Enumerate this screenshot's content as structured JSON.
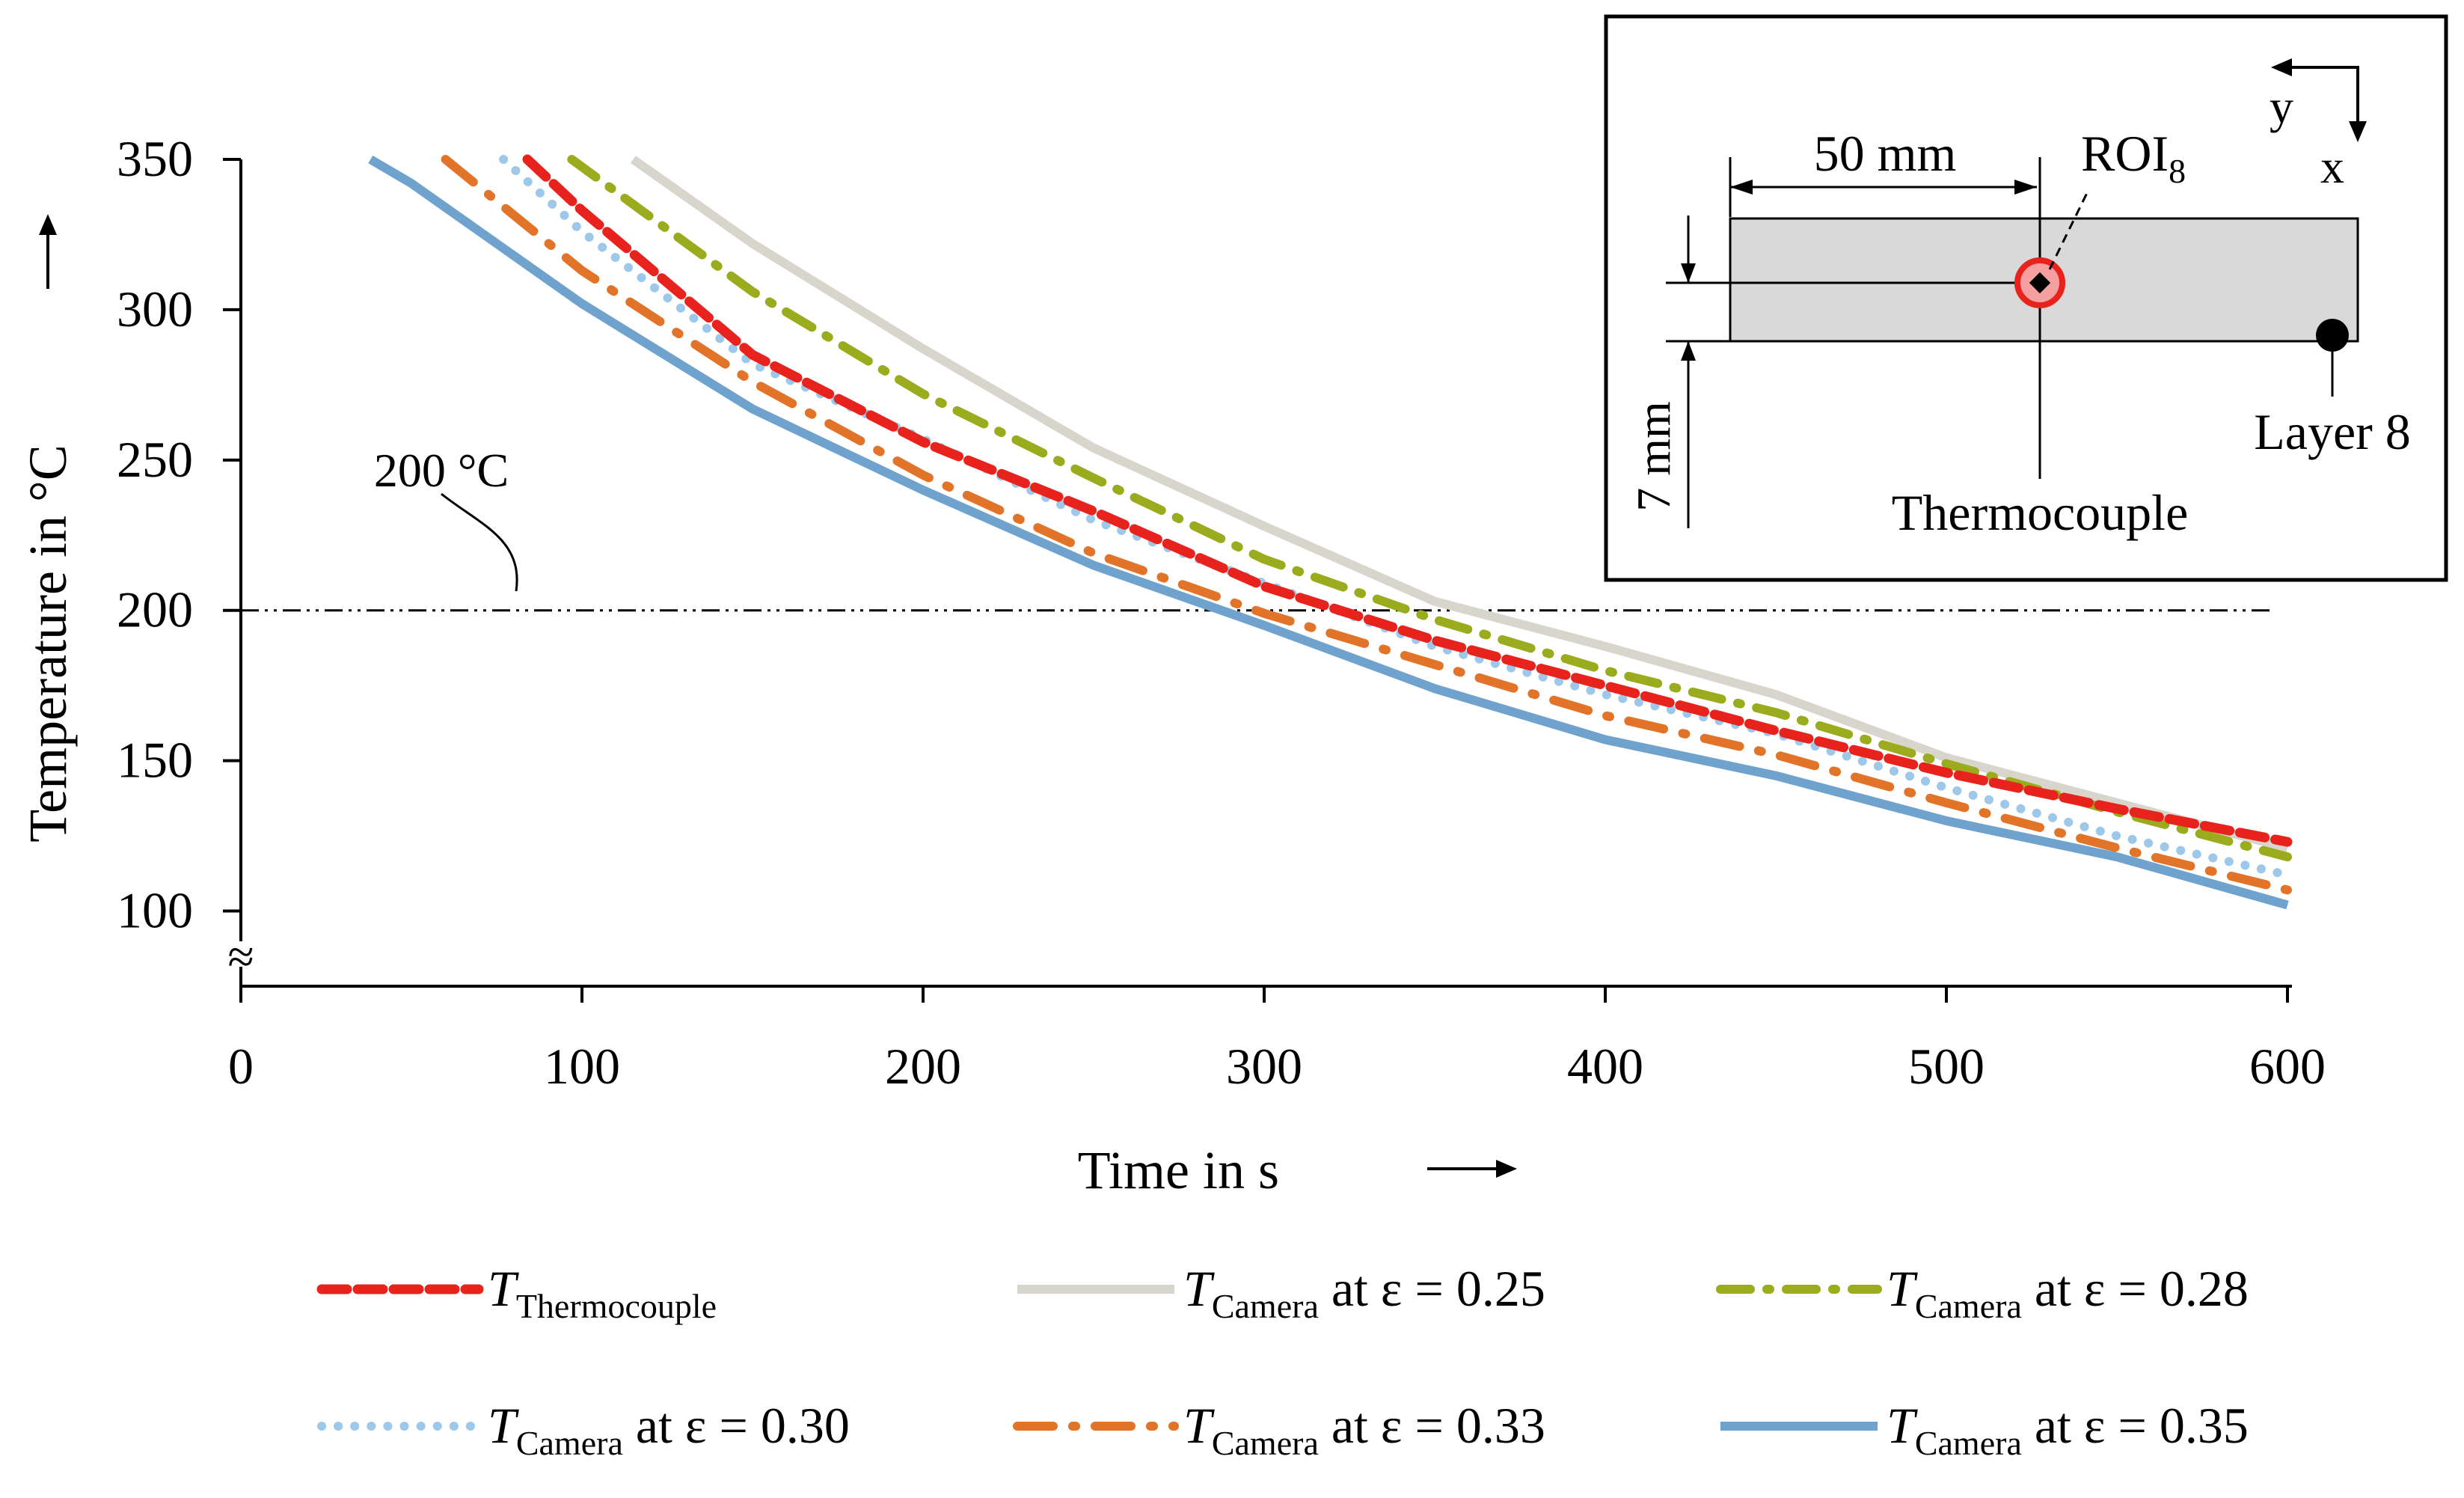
{
  "chart_data": {
    "type": "line",
    "xlabel": "Time in s",
    "ylabel": "Temperature in °C",
    "xlim": [
      0,
      600
    ],
    "ylim": [
      75,
      350
    ],
    "x_ticks": [
      "0",
      "100",
      "200",
      "300",
      "400",
      "500",
      "600"
    ],
    "y_ticks": [
      "100",
      "150",
      "200",
      "250",
      "300",
      "350"
    ],
    "axis_break": "≈",
    "reference_line": {
      "y": 200,
      "label": "200 °C"
    },
    "legend_position": "bottom",
    "series": [
      {
        "id": "tc",
        "name_main": "T",
        "name_sub": "Thermocouple",
        "name_rest": "",
        "color": "#e8221c",
        "style": "dash",
        "x": [
          84,
          100,
          150,
          200,
          250,
          300,
          350,
          400,
          450,
          500,
          550,
          600
        ],
        "y": [
          350,
          333,
          285,
          256,
          233,
          208,
          190,
          175,
          160,
          146,
          134,
          123
        ]
      },
      {
        "id": "e025",
        "name_main": "T",
        "name_sub": "Camera",
        "name_rest": " at ε = 0.25",
        "color": "#d7d5cc",
        "style": "solid",
        "x": [
          115,
          150,
          200,
          250,
          300,
          350,
          400,
          450,
          500,
          550,
          600
        ],
        "y": [
          350,
          322,
          287,
          254,
          228,
          203,
          188,
          172,
          151,
          136,
          121
        ]
      },
      {
        "id": "e028",
        "name_main": "T",
        "name_sub": "Camera",
        "name_rest": " at ε = 0.28",
        "color": "#9aab1e",
        "style": "dashdot",
        "x": [
          97,
          150,
          200,
          250,
          300,
          350,
          400,
          450,
          500,
          550,
          600
        ],
        "y": [
          350,
          306,
          272,
          244,
          217,
          197,
          180,
          166,
          149,
          133,
          118
        ]
      },
      {
        "id": "e030",
        "name_main": "T",
        "name_sub": "Camera",
        "name_rest": " at ε = 0.30",
        "color": "#9ec8ea",
        "style": "dot",
        "x": [
          77,
          100,
          150,
          200,
          250,
          300,
          350,
          400,
          450,
          500,
          550,
          600
        ],
        "y": [
          350,
          326,
          282,
          257,
          230,
          209,
          188,
          172,
          159,
          141,
          125,
          112
        ]
      },
      {
        "id": "e033",
        "name_main": "T",
        "name_sub": "Camera",
        "name_rest": " at ε = 0.33",
        "color": "#e2742a",
        "style": "dashdotlong",
        "x": [
          60,
          100,
          150,
          200,
          250,
          300,
          350,
          400,
          450,
          500,
          550,
          600
        ],
        "y": [
          350,
          313,
          276,
          245,
          219,
          199,
          182,
          165,
          152,
          136,
          121,
          107
        ]
      },
      {
        "id": "e035",
        "name_main": "T",
        "name_sub": "Camera",
        "name_rest": " at ε = 0.35",
        "color": "#6fa3cd",
        "style": "solid",
        "x": [
          38,
          50,
          100,
          150,
          200,
          250,
          300,
          350,
          400,
          450,
          500,
          550,
          600
        ],
        "y": [
          350,
          342,
          302,
          267,
          240,
          215,
          195,
          174,
          157,
          145,
          130,
          118,
          102
        ]
      }
    ]
  },
  "inset": {
    "dim_width": "50 mm",
    "dim_height": "7 mm",
    "roi_label": "ROI",
    "roi_sub": "8",
    "thermocouple_label": "Thermocouple",
    "layer_label": "Layer 8",
    "axis_x": "x",
    "axis_y": "y"
  }
}
